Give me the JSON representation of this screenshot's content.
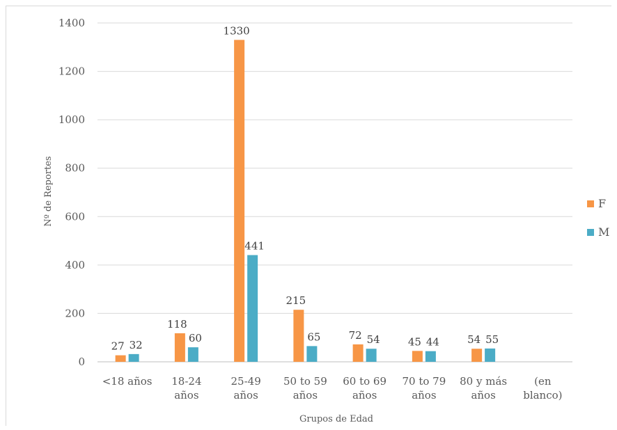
{
  "chart_data": {
    "type": "bar",
    "xlabel": "Grupos de Edad",
    "ylabel": "Nº de Reportes",
    "ylim": [
      0,
      1400
    ],
    "yticks": [
      0,
      200,
      400,
      600,
      800,
      1000,
      1200,
      1400
    ],
    "grid": true,
    "legend_position": "right",
    "categories": [
      [
        "<18 años"
      ],
      [
        "18-24",
        "años"
      ],
      [
        "25-49",
        "años"
      ],
      [
        "50 to 59",
        "años"
      ],
      [
        "60 to 69",
        "años"
      ],
      [
        "70 to 79",
        "años"
      ],
      [
        "80 y más",
        "años"
      ],
      [
        "(en",
        "blanco)"
      ]
    ],
    "series": [
      {
        "name": "F",
        "color": "#F79646",
        "values": [
          27,
          118,
          1330,
          215,
          72,
          45,
          54,
          null
        ]
      },
      {
        "name": "M",
        "color": "#4BACC6",
        "values": [
          32,
          60,
          441,
          65,
          54,
          44,
          55,
          null
        ]
      }
    ]
  }
}
